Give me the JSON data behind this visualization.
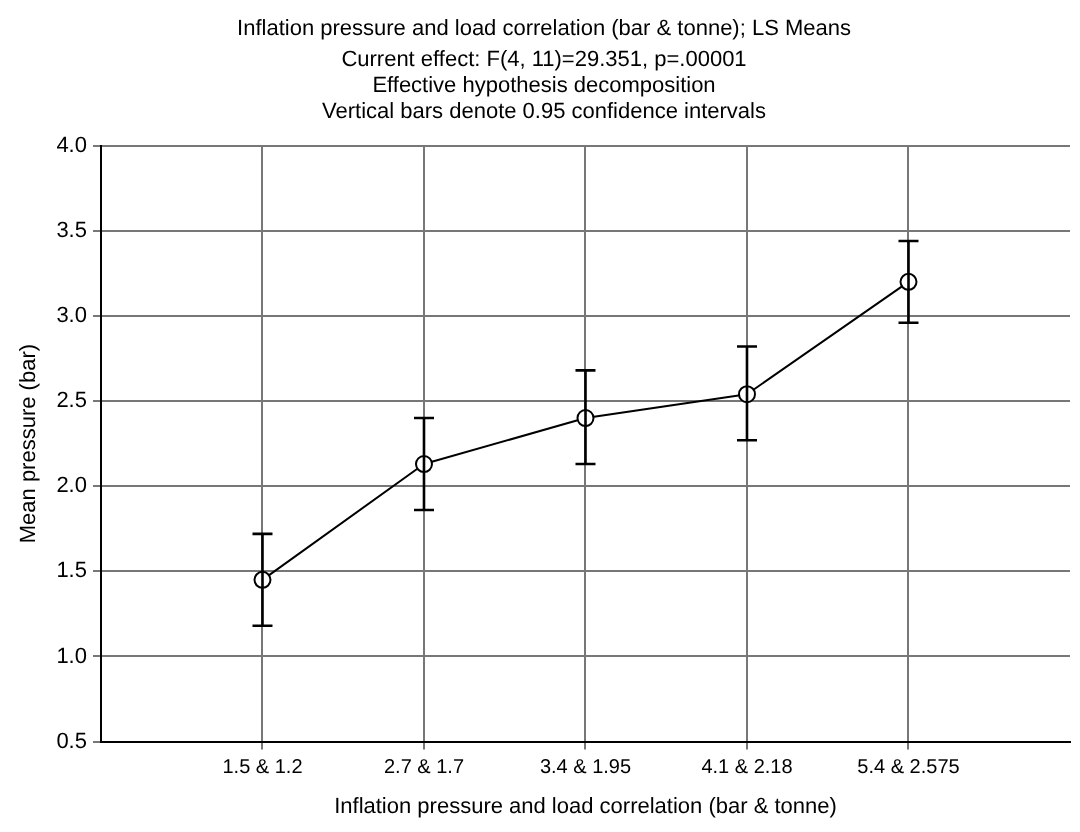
{
  "chart_data": {
    "type": "line",
    "title": "Inflation pressure and load correlation (bar & tonne); LS Means",
    "subtitle": [
      "Current effect: F(4, 11)=29.351, p=.00001",
      "Effective hypothesis decomposition",
      "Vertical bars denote 0.95 confidence intervals"
    ],
    "xlabel": "Inflation pressure and load correlation (bar & tonne)",
    "ylabel": "Mean pressure (bar)",
    "categories": [
      "1.5 & 1.2",
      "2.7 & 1.7",
      "3.4 & 1.95",
      "4.1 & 2.18",
      "5.4 & 2.575"
    ],
    "series": [
      {
        "color": "#000000",
        "values": [
          1.45,
          2.13,
          2.4,
          2.54,
          3.2
        ],
        "errors": [
          [
            1.18,
            1.72
          ],
          [
            1.86,
            2.4
          ],
          [
            2.13,
            2.68
          ],
          [
            2.27,
            2.82
          ],
          [
            2.96,
            3.44
          ]
        ]
      }
    ],
    "ylim": [
      0.5,
      4.0
    ],
    "yticks": [
      {
        "value": 0.5,
        "label": "0.5"
      },
      {
        "value": 1,
        "label": "1.0"
      },
      {
        "value": 1.5,
        "label": "1.5"
      },
      {
        "value": 2,
        "label": "2.0"
      },
      {
        "value": 2.5,
        "label": "2.5"
      },
      {
        "value": 3,
        "label": "3.0"
      },
      {
        "value": 3.5,
        "label": "3.5"
      },
      {
        "value": 4,
        "label": "4.0"
      }
    ],
    "grid": true,
    "legend": false,
    "marker": "circle",
    "line_style": "solid"
  }
}
